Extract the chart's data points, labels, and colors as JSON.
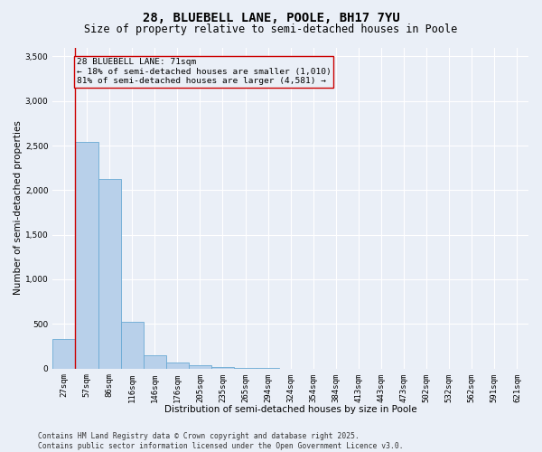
{
  "title": "28, BLUEBELL LANE, POOLE, BH17 7YU",
  "subtitle": "Size of property relative to semi-detached houses in Poole",
  "xlabel": "Distribution of semi-detached houses by size in Poole",
  "ylabel": "Number of semi-detached properties",
  "bar_color": "#b8d0ea",
  "bar_edge_color": "#6aaad4",
  "background_color": "#eaeff7",
  "grid_color": "#ffffff",
  "categories": [
    "27sqm",
    "57sqm",
    "86sqm",
    "116sqm",
    "146sqm",
    "176sqm",
    "205sqm",
    "235sqm",
    "265sqm",
    "294sqm",
    "324sqm",
    "354sqm",
    "384sqm",
    "413sqm",
    "443sqm",
    "473sqm",
    "502sqm",
    "532sqm",
    "562sqm",
    "591sqm",
    "621sqm"
  ],
  "values": [
    330,
    2540,
    2120,
    520,
    145,
    70,
    40,
    15,
    5,
    2,
    1,
    0,
    0,
    0,
    0,
    0,
    0,
    0,
    0,
    0,
    0
  ],
  "ylim": [
    0,
    3600
  ],
  "yticks": [
    0,
    500,
    1000,
    1500,
    2000,
    2500,
    3000,
    3500
  ],
  "property_line_x": 0.5,
  "property_line_color": "#cc0000",
  "annotation_text": "28 BLUEBELL LANE: 71sqm\n← 18% of semi-detached houses are smaller (1,010)\n81% of semi-detached houses are larger (4,581) →",
  "annotation_box_color": "#cc0000",
  "footer_text": "Contains HM Land Registry data © Crown copyright and database right 2025.\nContains public sector information licensed under the Open Government Licence v3.0.",
  "title_fontsize": 10,
  "subtitle_fontsize": 8.5,
  "axis_label_fontsize": 7.5,
  "tick_fontsize": 6.5,
  "annotation_fontsize": 6.8,
  "footer_fontsize": 5.8
}
